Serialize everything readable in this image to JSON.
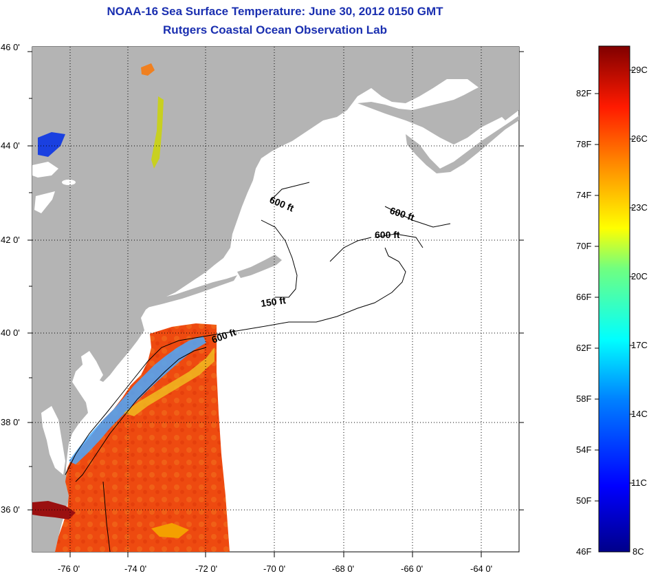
{
  "title": "NOAA-16 Sea Surface Temperature:  June 30, 2012 0150 GMT",
  "subtitle": "Rutgers Coastal Ocean Observation Lab",
  "latitude_labels": [
    "46 0'",
    "44 0'",
    "42 0'",
    "40 0'",
    "38 0'",
    "36 0'"
  ],
  "longitude_labels": [
    "-76 0'",
    "-74 0'",
    "-72 0'",
    "-70 0'",
    "-68 0'",
    "-66 0'",
    "-64 0'"
  ],
  "contour_labels": [
    "600 ft",
    "600 ft",
    "600 ft",
    "150 ft",
    "600 ft"
  ],
  "colorbar": {
    "fahrenheit": [
      "82F",
      "78F",
      "74F",
      "70F",
      "66F",
      "62F",
      "58F",
      "54F",
      "50F",
      "46F"
    ],
    "celsius": [
      "29C",
      "26C",
      "23C",
      "20C",
      "17C",
      "14C",
      "11C",
      "8C"
    ]
  },
  "colors": {
    "title": "#1a2fb0",
    "land": "#b4b4b4",
    "ocean_no_data": "#ffffff"
  }
}
